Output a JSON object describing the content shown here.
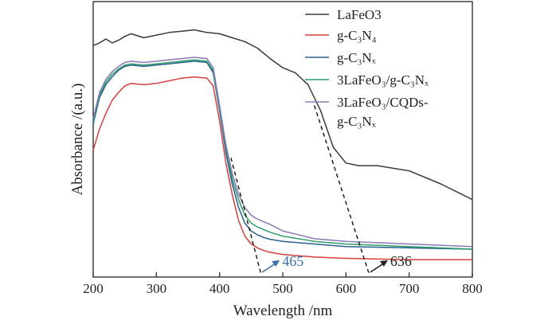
{
  "chart_data": {
    "type": "line",
    "xlabel": "Wavelength /nm",
    "ylabel": "Absorbance /(a.u.)",
    "xlim": [
      200,
      800
    ],
    "xticks": [
      200,
      300,
      400,
      500,
      600,
      700,
      800
    ],
    "ylim": [
      0,
      1
    ],
    "yticks_shown": false,
    "grid": false,
    "legend_position": "top-right",
    "series": [
      {
        "name": "LaFeO3",
        "color": "#3a3a3a",
        "x": [
          200,
          210,
          220,
          230,
          240,
          250,
          260,
          280,
          300,
          320,
          340,
          360,
          380,
          400,
          420,
          440,
          460,
          480,
          500,
          520,
          540,
          560,
          580,
          600,
          620,
          650,
          700,
          750,
          800
        ],
        "y": [
          0.85,
          0.86,
          0.875,
          0.86,
          0.87,
          0.885,
          0.895,
          0.88,
          0.89,
          0.9,
          0.905,
          0.91,
          0.9,
          0.895,
          0.88,
          0.865,
          0.84,
          0.8,
          0.765,
          0.745,
          0.7,
          0.6,
          0.46,
          0.4,
          0.39,
          0.39,
          0.37,
          0.32,
          0.26
        ]
      },
      {
        "name": "g-C₃N₄",
        "color": "#d63f3f",
        "x": [
          200,
          210,
          220,
          230,
          240,
          250,
          260,
          280,
          300,
          320,
          340,
          360,
          380,
          390,
          400,
          410,
          420,
          430,
          440,
          450,
          460,
          470,
          480,
          500,
          550,
          600,
          700,
          800
        ],
        "y": [
          0.45,
          0.53,
          0.59,
          0.64,
          0.67,
          0.695,
          0.705,
          0.7,
          0.705,
          0.715,
          0.725,
          0.73,
          0.725,
          0.695,
          0.56,
          0.4,
          0.28,
          0.18,
          0.12,
          0.09,
          0.075,
          0.065,
          0.058,
          0.05,
          0.04,
          0.035,
          0.03,
          0.03
        ]
      },
      {
        "name": "g-C₃Nₓ",
        "color": "#2b5f8f",
        "x": [
          200,
          210,
          220,
          230,
          240,
          250,
          260,
          280,
          300,
          320,
          340,
          360,
          380,
          390,
          400,
          410,
          420,
          430,
          440,
          450,
          460,
          470,
          480,
          500,
          550,
          600,
          700,
          800
        ],
        "y": [
          0.55,
          0.65,
          0.7,
          0.73,
          0.755,
          0.77,
          0.775,
          0.77,
          0.775,
          0.78,
          0.785,
          0.79,
          0.785,
          0.745,
          0.6,
          0.44,
          0.32,
          0.23,
          0.17,
          0.14,
          0.125,
          0.115,
          0.108,
          0.1,
          0.09,
          0.08,
          0.075,
          0.07
        ]
      },
      {
        "name": "3LaFeO₃/g-C₃Nₓ",
        "color": "#2e9e6a",
        "x": [
          200,
          210,
          220,
          230,
          240,
          250,
          260,
          280,
          300,
          320,
          340,
          360,
          380,
          390,
          400,
          410,
          420,
          430,
          440,
          450,
          460,
          470,
          480,
          500,
          550,
          600,
          700,
          800
        ],
        "y": [
          0.56,
          0.66,
          0.71,
          0.74,
          0.76,
          0.775,
          0.78,
          0.775,
          0.78,
          0.785,
          0.79,
          0.795,
          0.79,
          0.755,
          0.61,
          0.46,
          0.34,
          0.26,
          0.2,
          0.17,
          0.155,
          0.145,
          0.135,
          0.12,
          0.1,
          0.09,
          0.08,
          0.07
        ]
      },
      {
        "name": "3LaFeO₃/CQDs-g-C₃Nₓ",
        "color": "#8a7ab8",
        "x": [
          200,
          210,
          220,
          230,
          240,
          250,
          260,
          280,
          300,
          320,
          340,
          360,
          380,
          390,
          400,
          410,
          420,
          430,
          440,
          450,
          460,
          470,
          480,
          500,
          550,
          600,
          700,
          800
        ],
        "y": [
          0.57,
          0.67,
          0.72,
          0.75,
          0.77,
          0.785,
          0.79,
          0.785,
          0.79,
          0.795,
          0.8,
          0.805,
          0.8,
          0.765,
          0.62,
          0.47,
          0.36,
          0.28,
          0.23,
          0.2,
          0.185,
          0.175,
          0.165,
          0.14,
          0.11,
          0.1,
          0.09,
          0.08
        ]
      }
    ],
    "tangent_lines": [
      {
        "from": [
          550,
          0.62
        ],
        "to": [
          636,
          -0.02
        ]
      },
      {
        "from": [
          418,
          0.42
        ],
        "to": [
          465,
          -0.02
        ]
      }
    ],
    "annotations": [
      {
        "text": "465",
        "x": 465,
        "color": "#3a6ea8"
      },
      {
        "text": "636",
        "x": 636,
        "color": "#222222"
      }
    ]
  }
}
